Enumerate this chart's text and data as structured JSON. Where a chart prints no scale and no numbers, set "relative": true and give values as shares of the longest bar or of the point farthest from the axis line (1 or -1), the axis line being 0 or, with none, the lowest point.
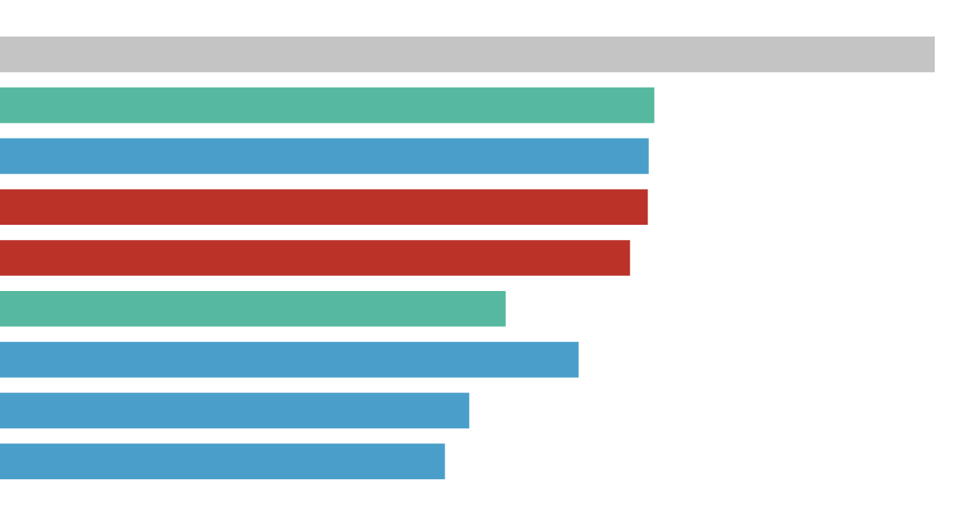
{
  "chart_data": {
    "type": "bar",
    "orientation": "horizontal",
    "relative": true,
    "legend": false,
    "categories": [
      null,
      null,
      null,
      null,
      null,
      null,
      null,
      null,
      null
    ],
    "values": [
      1,
      0.7,
      0.694,
      0.693,
      0.674,
      0.541,
      0.619,
      0.502,
      0.476
    ],
    "colors": [
      "#c4c4c4",
      "#56b99f",
      "#4a9fca",
      "#bb3229",
      "#bb3229",
      "#56b99f",
      "#4a9fca",
      "#4a9fca",
      "#4a9fca"
    ]
  }
}
